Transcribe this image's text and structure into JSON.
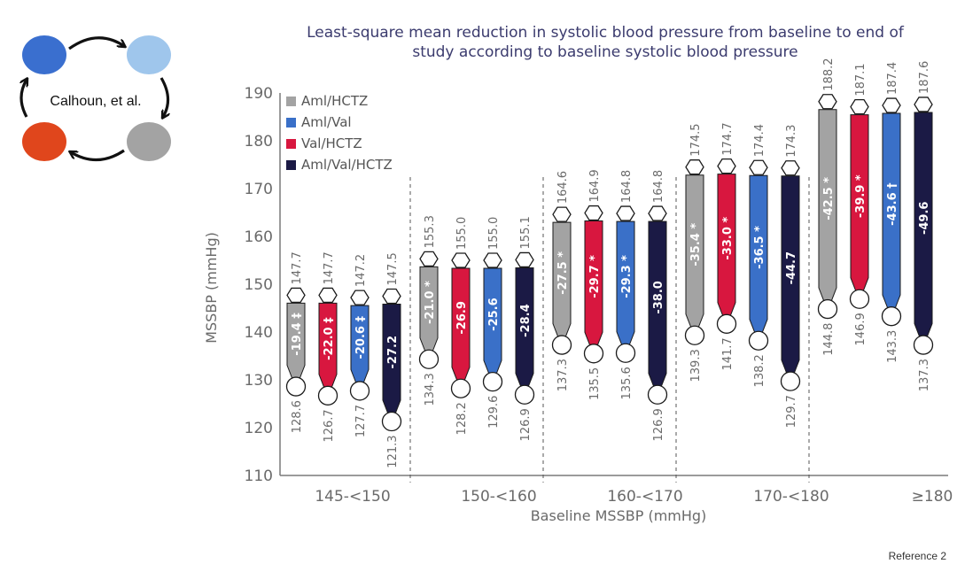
{
  "logo": {
    "text": "Calhoun, et al.",
    "circle_colors": [
      "#3a6fcf",
      "#9fc6ec",
      "#e0461c",
      "#a3a3a3"
    ]
  },
  "reference": "Reference 2",
  "colors": {
    "Aml/HCTZ": "#a3a3a3",
    "Aml/Val": "#3a70c8",
    "Val/HCTZ": "#d8173f",
    "Aml/Val/HCTZ": "#1b1a45"
  },
  "chart_data": {
    "type": "bar",
    "subtype": "floating-range",
    "title": "Least-square mean reduction in systolic blood pressure from baseline to end of study according to baseline systolic blood pressure",
    "xlabel": "Baseline MSSBP (mmHg)",
    "ylabel": "MSSBP (mmHg)",
    "ylim": [
      110,
      190
    ],
    "yticks": [
      110,
      120,
      130,
      140,
      150,
      160,
      170,
      180,
      190
    ],
    "legend_position": "top-left",
    "legend": [
      "Aml/HCTZ",
      "Aml/Val",
      "Val/HCTZ",
      "Aml/Val/HCTZ"
    ],
    "groups": [
      {
        "category": "145-<150",
        "bars": [
          {
            "series": "Aml/HCTZ",
            "baseline": 147.7,
            "end": 128.6,
            "reduction": "-19.4",
            "marker": "‡"
          },
          {
            "series": "Val/HCTZ",
            "baseline": 147.7,
            "end": 126.7,
            "reduction": "-22.0",
            "marker": "‡"
          },
          {
            "series": "Aml/Val",
            "baseline": 147.2,
            "end": 127.7,
            "reduction": "-20.6",
            "marker": "‡"
          },
          {
            "series": "Aml/Val/HCTZ",
            "baseline": 147.5,
            "end": 121.3,
            "reduction": "-27.2",
            "marker": ""
          }
        ]
      },
      {
        "category": "150-<160",
        "bars": [
          {
            "series": "Aml/HCTZ",
            "baseline": 155.3,
            "end": 134.3,
            "reduction": "-21.0",
            "marker": "*"
          },
          {
            "series": "Val/HCTZ",
            "baseline": 155.0,
            "end": 128.2,
            "reduction": "-26.9",
            "marker": ""
          },
          {
            "series": "Aml/Val",
            "baseline": 155.0,
            "end": 129.6,
            "reduction": "-25.6",
            "marker": ""
          },
          {
            "series": "Aml/Val/HCTZ",
            "baseline": 155.1,
            "end": 126.9,
            "reduction": "-28.4",
            "marker": ""
          }
        ]
      },
      {
        "category": "160-<170",
        "bars": [
          {
            "series": "Aml/HCTZ",
            "baseline": 164.6,
            "end": 137.3,
            "reduction": "-27.5",
            "marker": "*"
          },
          {
            "series": "Val/HCTZ",
            "baseline": 164.9,
            "end": 135.5,
            "reduction": "-29.7",
            "marker": "*"
          },
          {
            "series": "Aml/Val",
            "baseline": 164.8,
            "end": 135.6,
            "reduction": "-29.3",
            "marker": "*"
          },
          {
            "series": "Aml/Val/HCTZ",
            "baseline": 164.8,
            "end": 126.9,
            "reduction": "-38.0",
            "marker": ""
          }
        ]
      },
      {
        "category": "170-<180",
        "bars": [
          {
            "series": "Aml/HCTZ",
            "baseline": 174.5,
            "end": 139.3,
            "reduction": "-35.4",
            "marker": "*"
          },
          {
            "series": "Val/HCTZ",
            "baseline": 174.7,
            "end": 141.7,
            "reduction": "-33.0",
            "marker": "*"
          },
          {
            "series": "Aml/Val",
            "baseline": 174.4,
            "end": 138.2,
            "reduction": "-36.5",
            "marker": "*"
          },
          {
            "series": "Aml/Val/HCTZ",
            "baseline": 174.3,
            "end": 129.7,
            "reduction": "-44.7",
            "marker": ""
          }
        ]
      },
      {
        "category": "≥180",
        "bars": [
          {
            "series": "Aml/HCTZ",
            "baseline": 188.2,
            "end": 144.8,
            "reduction": "-42.5",
            "marker": "*"
          },
          {
            "series": "Val/HCTZ",
            "baseline": 187.1,
            "end": 146.9,
            "reduction": "-39.9",
            "marker": "*"
          },
          {
            "series": "Aml/Val",
            "baseline": 187.4,
            "end": 143.3,
            "reduction": "-43.6",
            "marker": "†"
          },
          {
            "series": "Aml/Val/HCTZ",
            "baseline": 187.6,
            "end": 137.3,
            "reduction": "-49.6",
            "marker": ""
          }
        ]
      }
    ]
  }
}
